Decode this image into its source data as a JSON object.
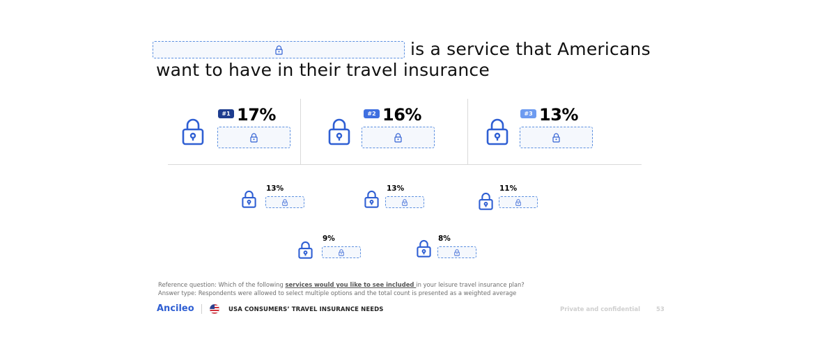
{
  "headline": {
    "line1": "is a service that Americans",
    "line2": "want to have in their travel insurance"
  },
  "top3": [
    {
      "rank": "#1",
      "pct": "17%",
      "badge_color": "#1e3d8f"
    },
    {
      "rank": "#2",
      "pct": "16%",
      "badge_color": "#3f6fe0"
    },
    {
      "rank": "#3",
      "pct": "13%",
      "badge_color": "#6d9bf0"
    }
  ],
  "others_row1": [
    {
      "pct": "13%"
    },
    {
      "pct": "13%"
    },
    {
      "pct": "11%"
    }
  ],
  "others_row2": [
    {
      "pct": "9%"
    },
    {
      "pct": "8%"
    }
  ],
  "reference": {
    "prefix": "Reference question: Which of the following ",
    "emphasis": "services would you like to see included ",
    "suffix": "in your leisure travel insurance plan?",
    "answer_type": "Answer type: Respondents were allowed to select multiple options and the total count is presented as a weighted average"
  },
  "footer": {
    "brand": "Ancileo",
    "report_title": "USA CONSUMERS’ TRAVEL INSURANCE NEEDS",
    "confidential": "Private and confidential",
    "page_number": "53"
  },
  "icons": {
    "lock": "padlock-icon",
    "flag": "usa-flag-icon"
  },
  "colors": {
    "accent": "#2f5fd3",
    "lock_stroke": "#2f5fd3",
    "placeholder_border": "#5b8fe0"
  }
}
